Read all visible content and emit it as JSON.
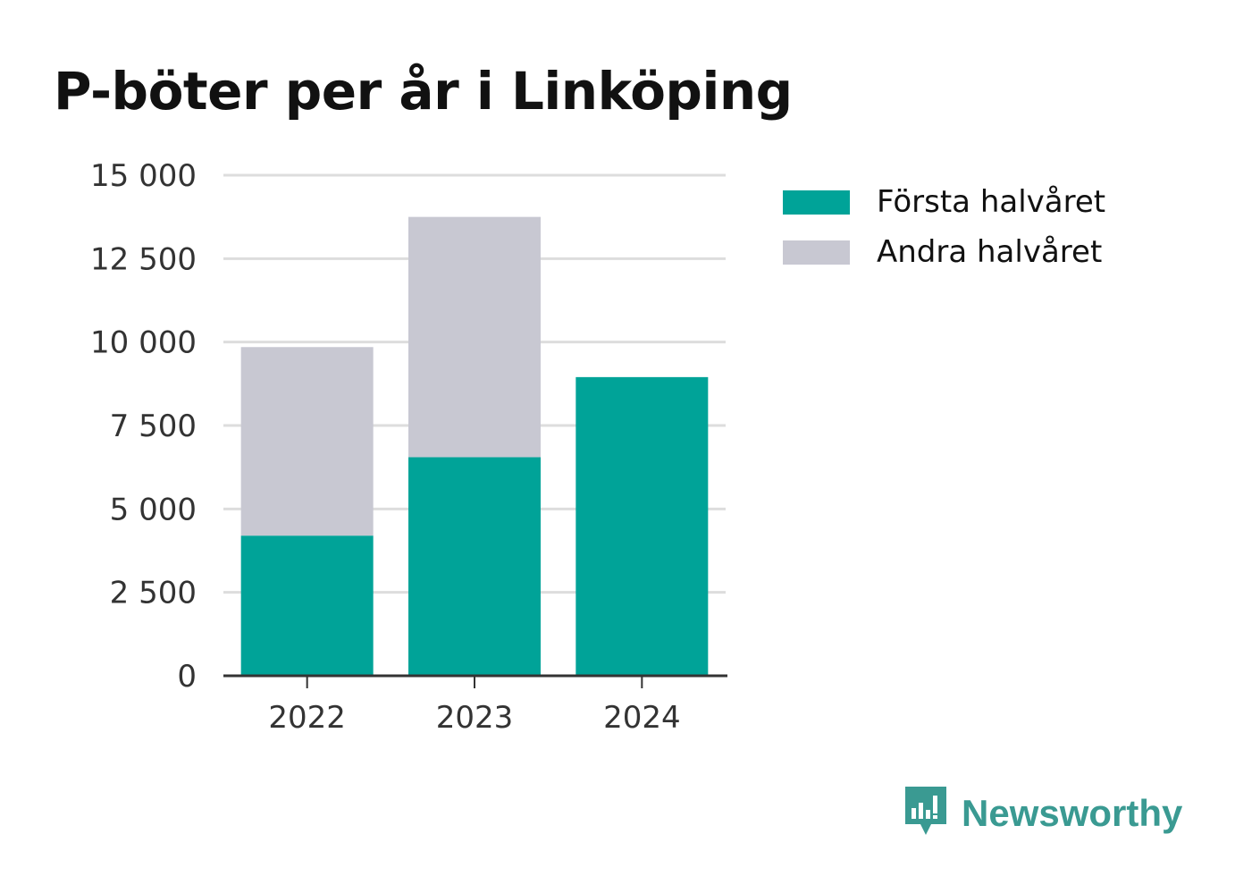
{
  "chart_data": {
    "type": "bar",
    "stacked": true,
    "title": "P-böter per år i Linköping",
    "xlabel": "",
    "ylabel": "",
    "categories": [
      "2022",
      "2023",
      "2024"
    ],
    "series": [
      {
        "name": "Första halvåret",
        "color": "#00a398",
        "values": [
          4200,
          6550,
          8950
        ]
      },
      {
        "name": "Andra halvåret",
        "color": "#c8c8d2",
        "values": [
          5650,
          7200,
          0
        ]
      }
    ],
    "ylim": [
      0,
      15000
    ],
    "yticks": [
      0,
      2500,
      5000,
      7500,
      10000,
      12500,
      15000
    ],
    "ytick_labels": [
      "0",
      "2 500",
      "5 000",
      "7 500",
      "10 000",
      "12 500",
      "15 000"
    ],
    "grid": true,
    "legend_position": "right"
  },
  "brand": {
    "name": "Newsworthy",
    "icon": "newsworthy-logo-icon",
    "color": "#3a9a92"
  }
}
